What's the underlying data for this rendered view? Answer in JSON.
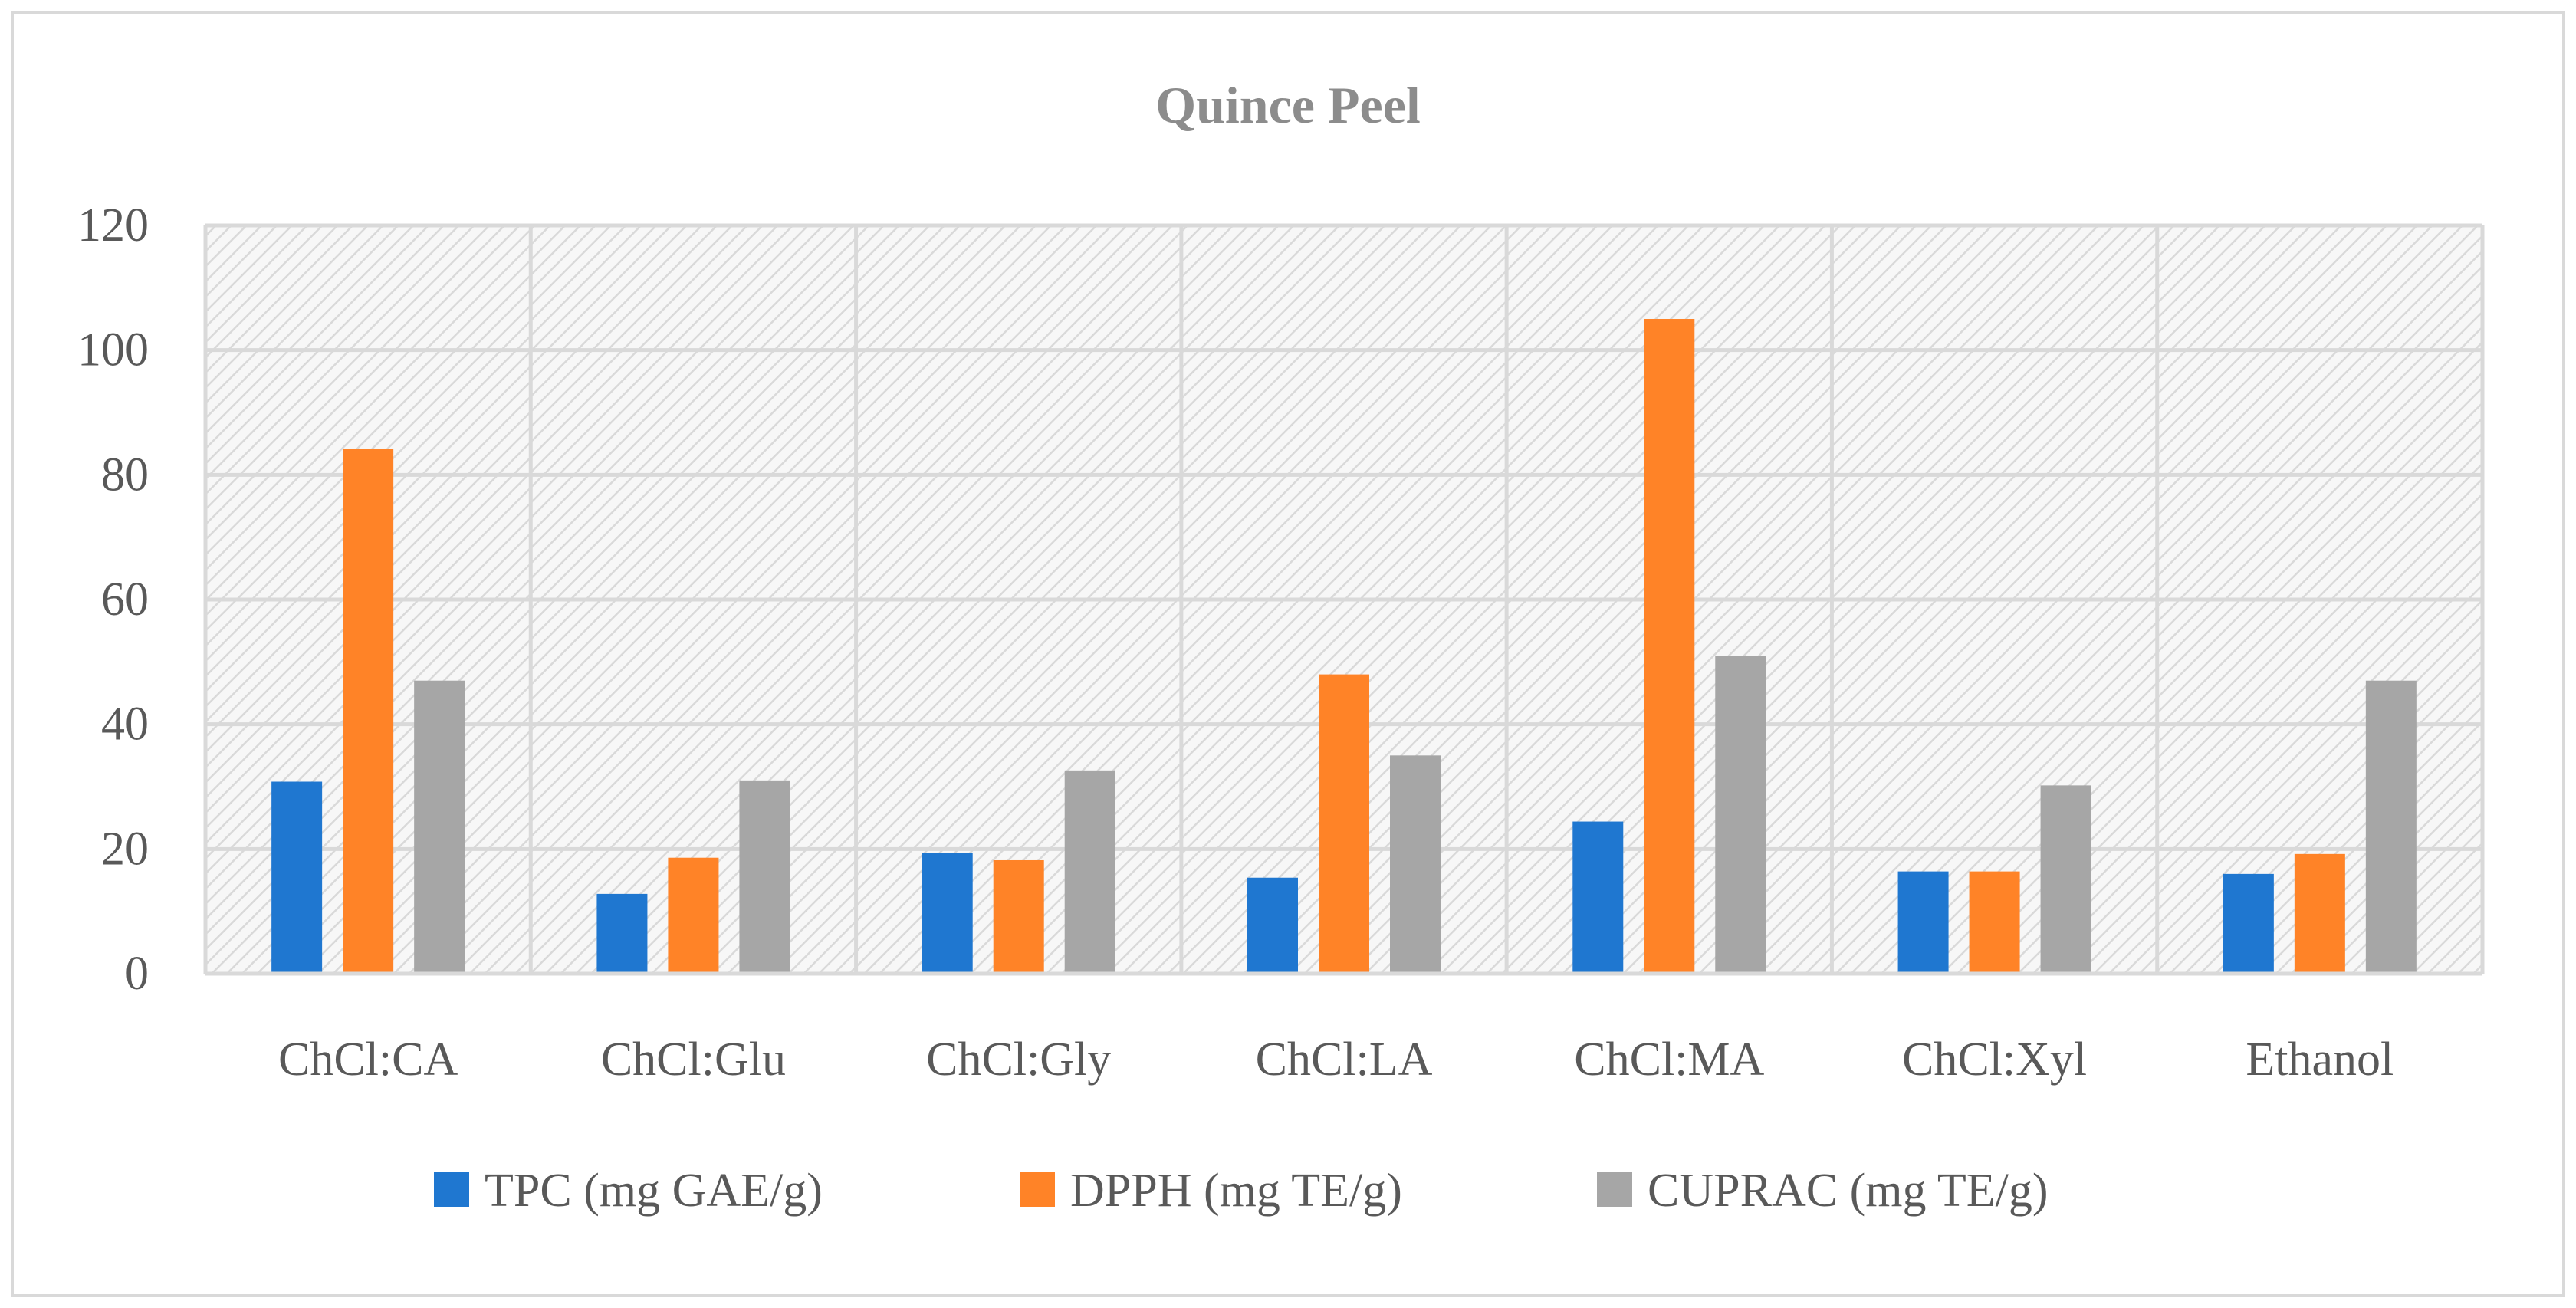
{
  "chart_data": {
    "type": "bar",
    "title": "Quince Peel",
    "xlabel": "",
    "ylabel": "",
    "categories": [
      "ChCl:CA",
      "ChCl:Glu",
      "ChCl:Gly",
      "ChCl:LA",
      "ChCl:MA",
      "ChCl:Xyl",
      "Ethanol"
    ],
    "series": [
      {
        "name": "TPC (mg GAE/g)",
        "color": "#1f77d0",
        "values": [
          30.8,
          12.8,
          19.4,
          15.4,
          24.4,
          16.4,
          16.0
        ]
      },
      {
        "name": "DPPH (mg TE/g)",
        "color": "#ff8327",
        "values": [
          84.2,
          18.6,
          18.2,
          48.0,
          105.0,
          16.4,
          19.2
        ]
      },
      {
        "name": "CUPRAC (mg TE/g)",
        "color": "#a6a6a6",
        "values": [
          47.0,
          31.0,
          32.6,
          35.0,
          51.0,
          30.2,
          47.0
        ]
      }
    ],
    "ylim": [
      0,
      120
    ],
    "yticks": [
      0,
      20,
      40,
      60,
      80,
      100,
      120
    ],
    "grid": true,
    "legend": "bottom"
  }
}
